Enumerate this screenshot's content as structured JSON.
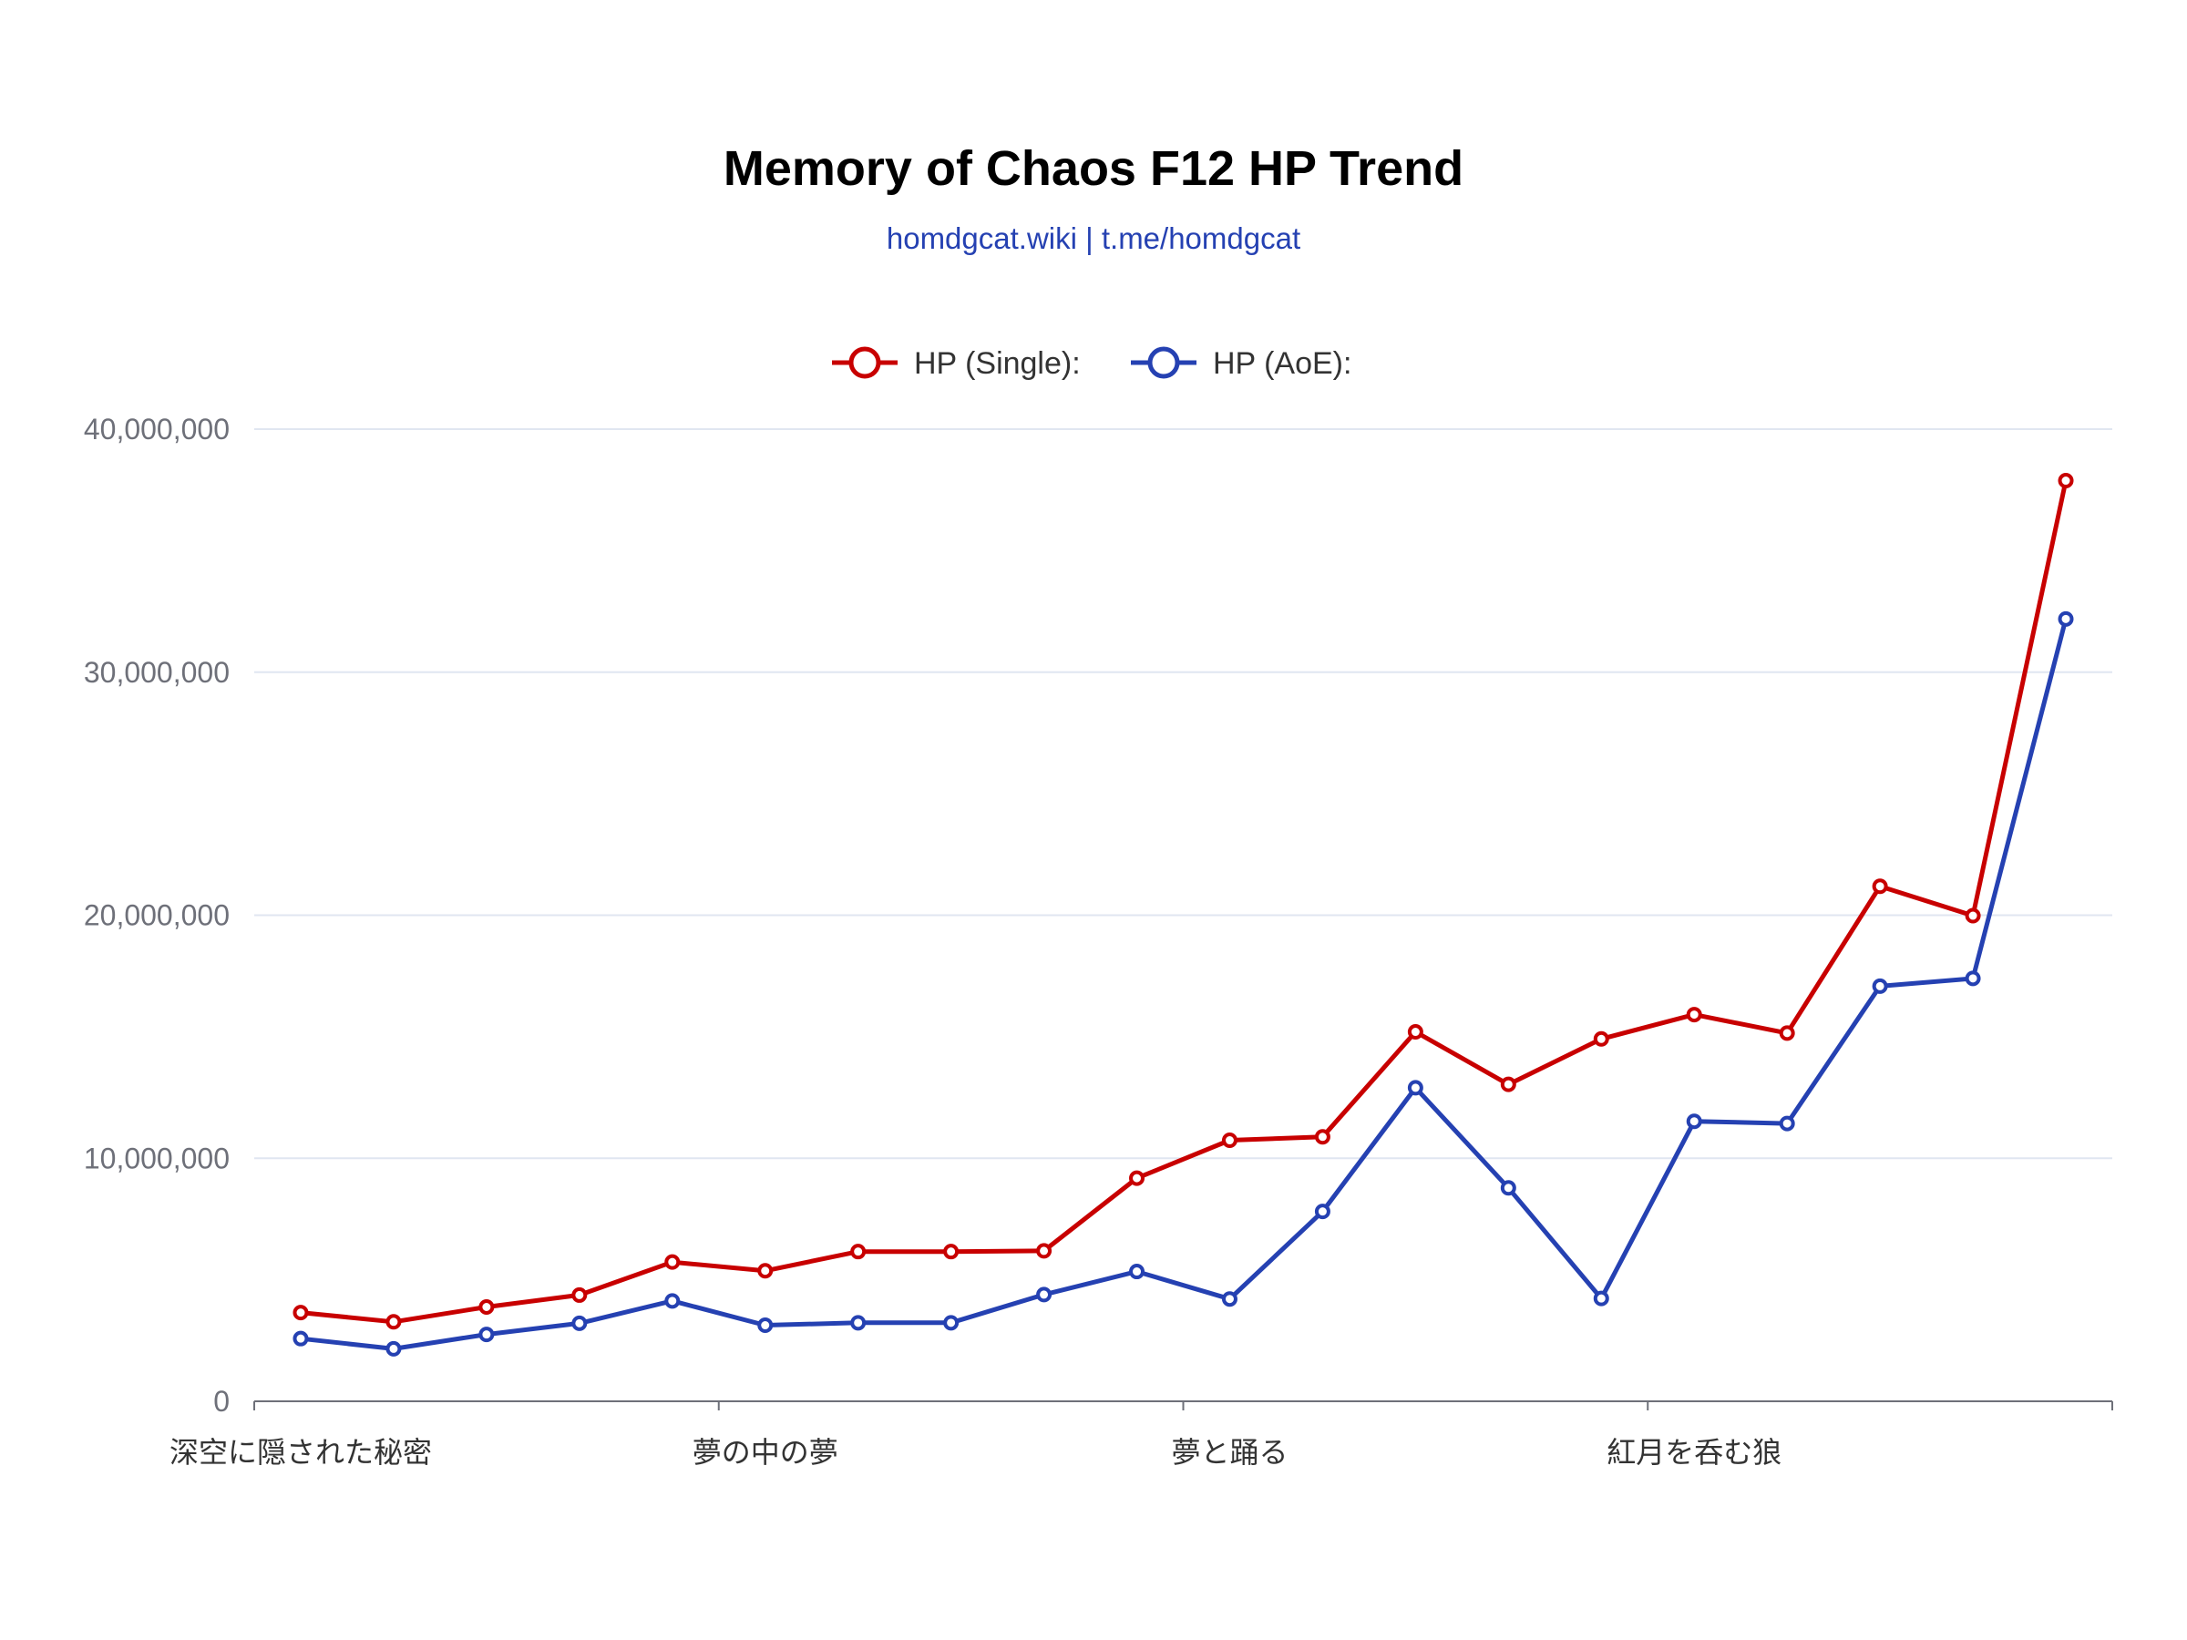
{
  "chart_data": {
    "type": "line",
    "title": "Memory of Chaos F12 HP Trend",
    "subtitle": "homdgcat.wiki | t.me/homdgcat",
    "xlabel": "",
    "ylabel": "",
    "ylim": [
      0,
      40000000
    ],
    "yticks": [
      0,
      10000000,
      20000000,
      30000000,
      40000000
    ],
    "ytick_labels": [
      "0",
      "10,000,000",
      "20,000,000",
      "30,000,000",
      "40,000,000"
    ],
    "grid": true,
    "legend_position": "top-center",
    "x": [
      1,
      2,
      3,
      4,
      5,
      6,
      7,
      8,
      9,
      10,
      11,
      12,
      13,
      14,
      15,
      16,
      17,
      18,
      19,
      20
    ],
    "x_tick_labels": [
      {
        "at": 1,
        "label": "深空に隠された秘密"
      },
      {
        "at": 6,
        "label": "夢の中の夢"
      },
      {
        "at": 11,
        "label": "夢と踊る"
      },
      {
        "at": 16,
        "label": "紅月を呑む狼"
      }
    ],
    "series": [
      {
        "name": "HP (Single):",
        "color": "#c80000",
        "values": [
          3650000,
          3270000,
          3880000,
          4370000,
          5730000,
          5370000,
          6160000,
          6160000,
          6190000,
          9180000,
          10740000,
          10880000,
          15200000,
          13040000,
          14910000,
          15910000,
          15150000,
          21190000,
          19980000,
          37880000
        ]
      },
      {
        "name": "HP (AoE):",
        "color": "#2541b2",
        "values": [
          2580000,
          2160000,
          2750000,
          3210000,
          4130000,
          3130000,
          3230000,
          3230000,
          4390000,
          5340000,
          4210000,
          7810000,
          12900000,
          8780000,
          4230000,
          11520000,
          11430000,
          17080000,
          17400000,
          32190000
        ]
      }
    ]
  }
}
